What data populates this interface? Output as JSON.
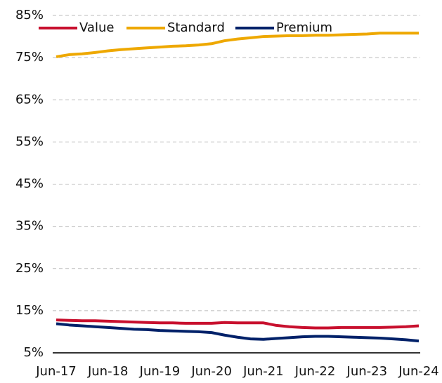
{
  "chart_data": {
    "type": "line",
    "categories": [
      "Jun-17",
      null,
      null,
      null,
      "Jun-18",
      null,
      null,
      null,
      "Jun-19",
      null,
      null,
      null,
      "Jun-20",
      null,
      null,
      null,
      "Jun-21",
      null,
      null,
      null,
      "Jun-22",
      null,
      null,
      null,
      "Jun-23",
      null,
      null,
      null,
      "Jun-24"
    ],
    "series": [
      {
        "name": "Value",
        "color": "#c8102e",
        "values": [
          12.8,
          12.7,
          12.6,
          12.6,
          12.5,
          12.4,
          12.3,
          12.2,
          12.1,
          12.1,
          12.0,
          12.0,
          12.0,
          12.2,
          12.1,
          12.1,
          12.1,
          11.5,
          11.2,
          11.0,
          10.9,
          10.9,
          11.0,
          11.0,
          11.0,
          11.0,
          11.1,
          11.2,
          11.4
        ]
      },
      {
        "name": "Standard",
        "color": "#eea800",
        "values": [
          75.2,
          75.7,
          75.9,
          76.2,
          76.6,
          76.9,
          77.1,
          77.3,
          77.5,
          77.7,
          77.8,
          78.0,
          78.3,
          79.0,
          79.4,
          79.7,
          80.0,
          80.1,
          80.2,
          80.2,
          80.3,
          80.3,
          80.4,
          80.5,
          80.6,
          80.8,
          80.8,
          80.8,
          80.8
        ]
      },
      {
        "name": "Premium",
        "color": "#012169",
        "values": [
          11.9,
          11.6,
          11.4,
          11.2,
          11.0,
          10.8,
          10.6,
          10.5,
          10.3,
          10.2,
          10.1,
          10.0,
          9.8,
          9.2,
          8.7,
          8.3,
          8.2,
          8.4,
          8.6,
          8.8,
          8.9,
          8.9,
          8.8,
          8.7,
          8.6,
          8.5,
          8.3,
          8.1,
          7.8
        ]
      }
    ],
    "ylim": [
      5,
      85
    ],
    "yticks": [
      {
        "value": 5,
        "label": "5%"
      },
      {
        "value": 15,
        "label": "15%"
      },
      {
        "value": 25,
        "label": "25%"
      },
      {
        "value": 35,
        "label": "35%"
      },
      {
        "value": 45,
        "label": "45%"
      },
      {
        "value": 55,
        "label": "55%"
      },
      {
        "value": 65,
        "label": "65%"
      },
      {
        "value": 75,
        "label": "75%"
      },
      {
        "value": 85,
        "label": "85%"
      }
    ],
    "grid": true,
    "legend": "top"
  }
}
